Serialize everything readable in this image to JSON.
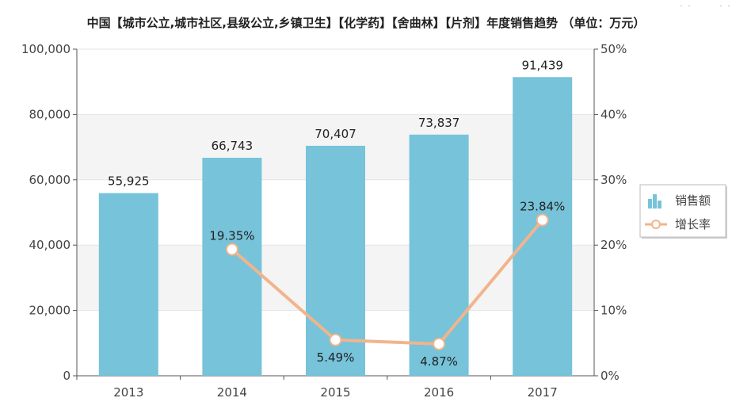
{
  "title": "中国【城市公立,城市社区,县级公立,乡镇卫生】【化学药】【舍曲林】【片剂】年度销售趋势 （单位：万元）",
  "toolbar_icons": [
    "chart-switch-icon",
    "menu-icon"
  ],
  "colors": {
    "bar": "#76c3da",
    "line": "#f2b48c",
    "grid": "#e3e3e3",
    "band": "#f4f4f4",
    "axis": "#555555"
  },
  "chart_data": {
    "type": "bar",
    "categories": [
      "2013",
      "2014",
      "2015",
      "2016",
      "2017"
    ],
    "series": [
      {
        "name": "销售额",
        "type": "bar",
        "axis": "left",
        "values": [
          55925,
          66743,
          70407,
          73837,
          91439
        ],
        "labels": [
          "55,925",
          "66,743",
          "70,407",
          "73,837",
          "91,439"
        ]
      },
      {
        "name": "增长率",
        "type": "line",
        "axis": "right",
        "values": [
          null,
          19.35,
          5.49,
          4.87,
          23.84
        ],
        "labels": [
          "",
          "19.35%",
          "5.49%",
          "4.87%",
          "23.84%"
        ]
      }
    ],
    "y_left": {
      "ticks": [
        "0",
        "20,000",
        "40,000",
        "60,000",
        "80,000",
        "100,000"
      ],
      "range": [
        0,
        100000
      ]
    },
    "y_right": {
      "ticks": [
        "0%",
        "10%",
        "20%",
        "30%",
        "40%",
        "50%"
      ],
      "range": [
        0,
        50
      ]
    },
    "grid": true,
    "legend": "right"
  }
}
